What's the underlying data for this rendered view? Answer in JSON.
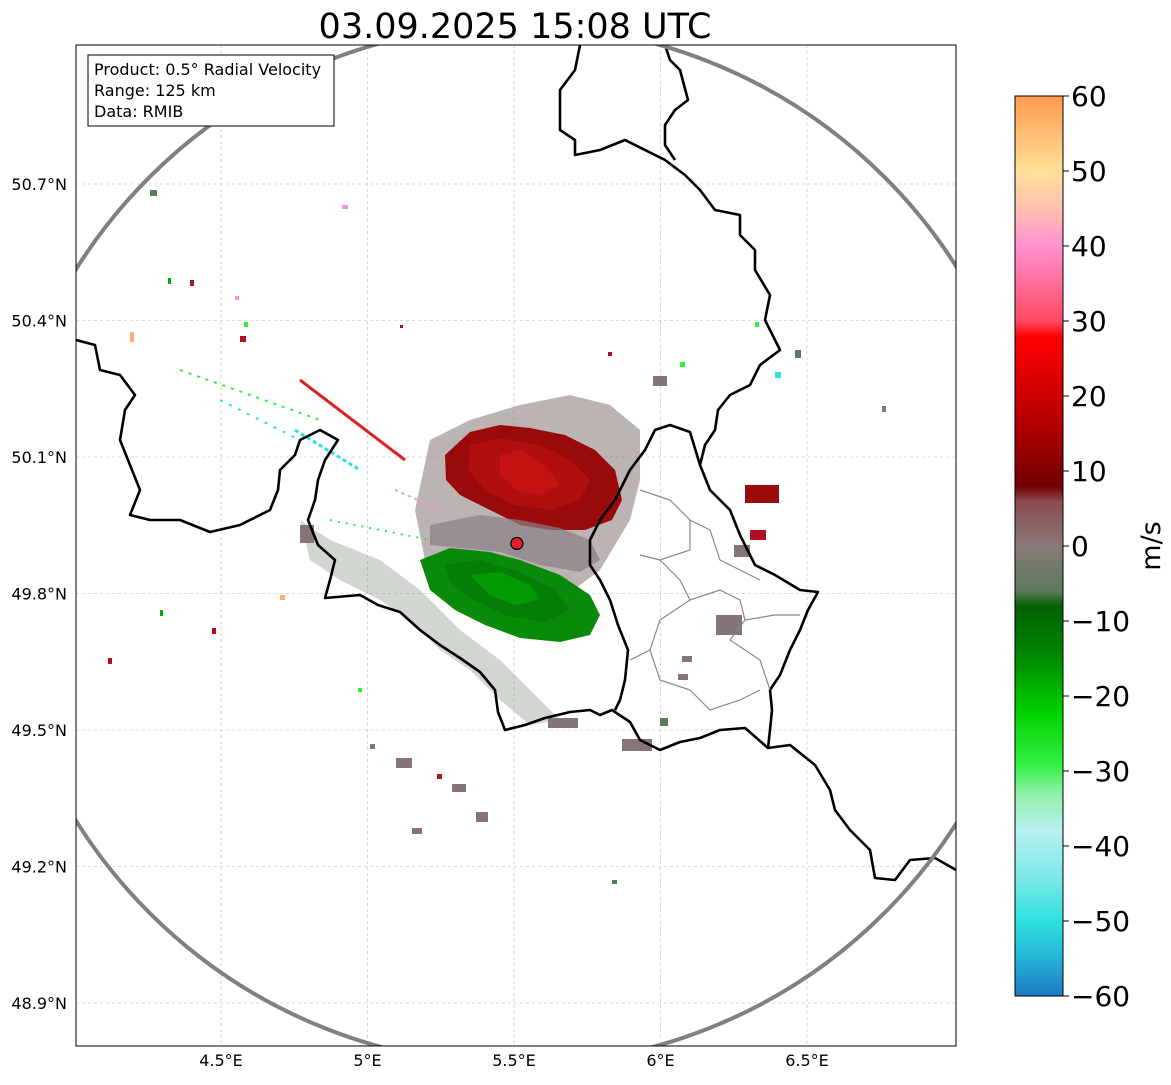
{
  "title": "03.09.2025 15:08 UTC",
  "info_box": {
    "product": "Product: 0.5° Radial Velocity",
    "range": "Range: 125 km",
    "data": "Data: RMIB"
  },
  "map": {
    "lon_ticks": [
      {
        "value": 4.5,
        "label": "4.5°E"
      },
      {
        "value": 5.0,
        "label": "5°E"
      },
      {
        "value": 5.5,
        "label": "5.5°E"
      },
      {
        "value": 6.0,
        "label": "6°E"
      },
      {
        "value": 6.5,
        "label": "6.5°E"
      }
    ],
    "lat_ticks": [
      {
        "value": 50.7,
        "label": "50.7°N"
      },
      {
        "value": 50.4,
        "label": "50.4°N"
      },
      {
        "value": 50.1,
        "label": "50.1°N"
      },
      {
        "value": 49.8,
        "label": "49.8°N"
      },
      {
        "value": 49.5,
        "label": "49.5°N"
      },
      {
        "value": 49.2,
        "label": "49.2°N"
      },
      {
        "value": 48.9,
        "label": "48.9°N"
      }
    ],
    "radar_site": {
      "lon": 5.51,
      "lat": 49.91,
      "color": "#e0202a"
    },
    "range_ring_color": "#808080",
    "grid": true
  },
  "colorbar": {
    "label": "m/s",
    "min": -60,
    "max": 60,
    "ticks": [
      {
        "value": 60,
        "label": "60"
      },
      {
        "value": 50,
        "label": "50"
      },
      {
        "value": 40,
        "label": "40"
      },
      {
        "value": 30,
        "label": "30"
      },
      {
        "value": 20,
        "label": "20"
      },
      {
        "value": 10,
        "label": "10"
      },
      {
        "value": 0,
        "label": "0"
      },
      {
        "value": -10,
        "label": "−10"
      },
      {
        "value": -20,
        "label": "−20"
      },
      {
        "value": -30,
        "label": "−30"
      },
      {
        "value": -40,
        "label": "−40"
      },
      {
        "value": -50,
        "label": "−50"
      },
      {
        "value": -60,
        "label": "−60"
      }
    ],
    "stops": [
      {
        "value": -60,
        "color": "#1f78c4"
      },
      {
        "value": -55,
        "color": "#24b4d6"
      },
      {
        "value": -50,
        "color": "#2ee0e0"
      },
      {
        "value": -44,
        "color": "#7ee8e8"
      },
      {
        "value": -38,
        "color": "#b8f0f0"
      },
      {
        "value": -33,
        "color": "#90f0a8"
      },
      {
        "value": -29,
        "color": "#30f040"
      },
      {
        "value": -22,
        "color": "#00d000"
      },
      {
        "value": -15,
        "color": "#008a00"
      },
      {
        "value": -8,
        "color": "#006000"
      },
      {
        "value": -6,
        "color": "#5c7a5c"
      },
      {
        "value": 0,
        "color": "#8a7a7a"
      },
      {
        "value": 6,
        "color": "#8a4a50"
      },
      {
        "value": 8,
        "color": "#700000"
      },
      {
        "value": 18,
        "color": "#c00000"
      },
      {
        "value": 28,
        "color": "#ff0000"
      },
      {
        "value": 30,
        "color": "#ff4a60"
      },
      {
        "value": 40,
        "color": "#ff90d0"
      },
      {
        "value": 45,
        "color": "#ffc0b0"
      },
      {
        "value": 50,
        "color": "#ffe098"
      },
      {
        "value": 60,
        "color": "#ff9a50"
      }
    ]
  }
}
